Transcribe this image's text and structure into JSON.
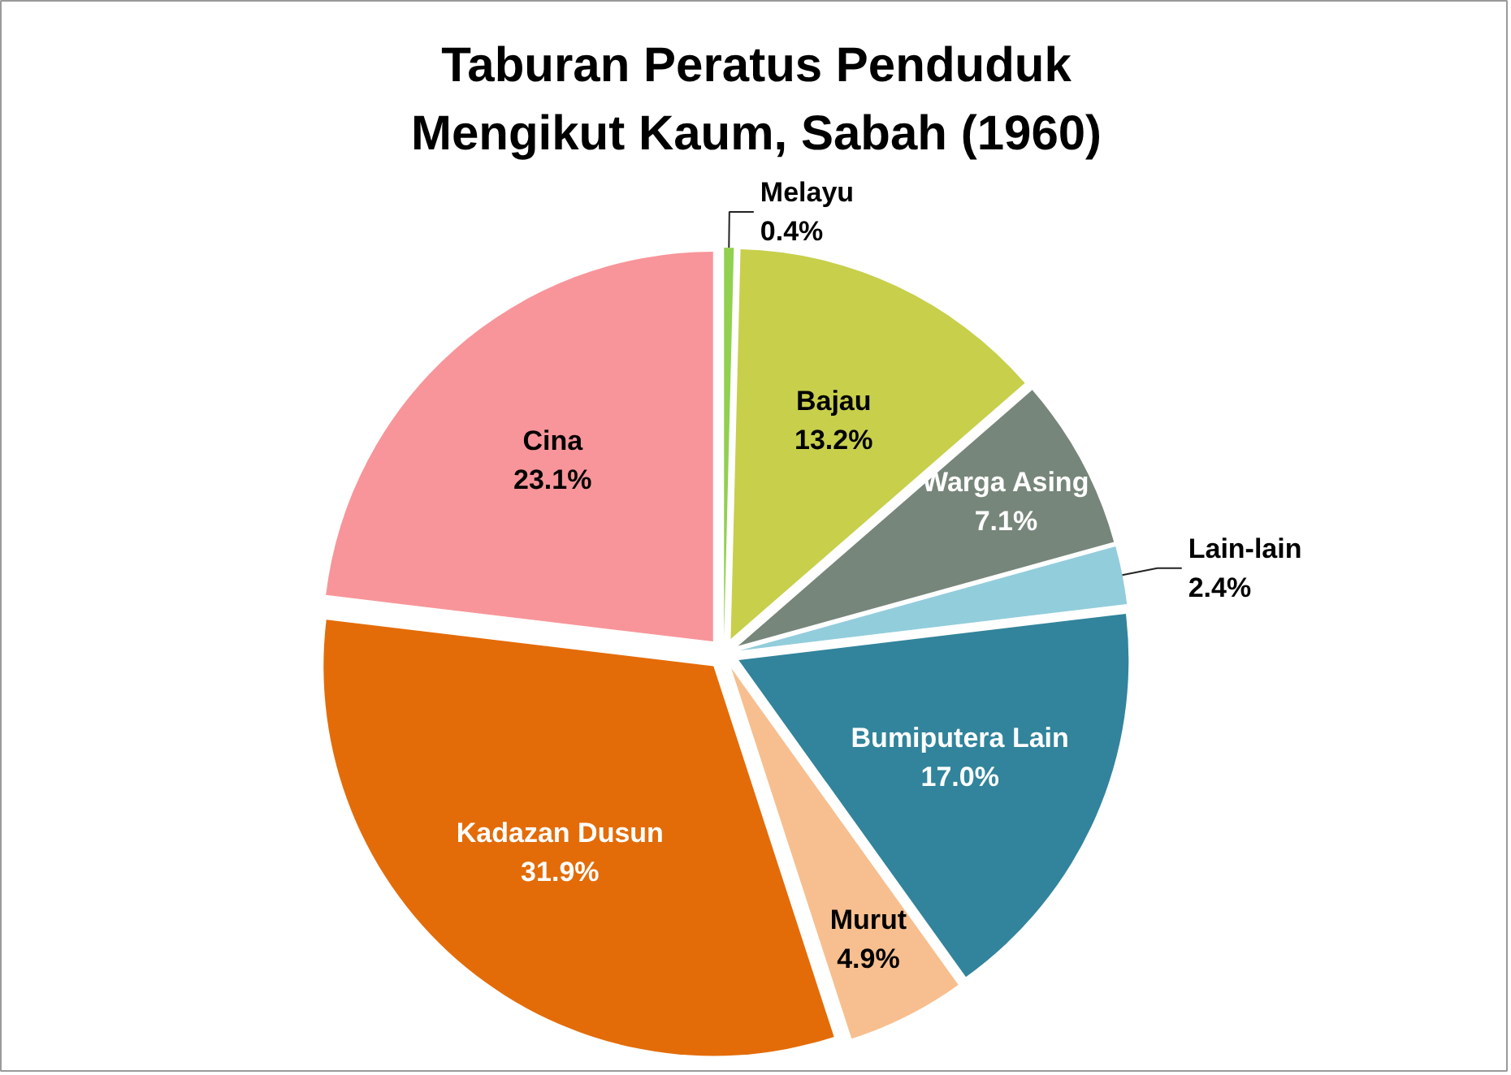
{
  "chart_data": {
    "type": "pie",
    "title": "Taburan Peratus Penduduk Mengikut Kaum, Sabah (1960)",
    "categories": [
      "Melayu",
      "Bajau",
      "Warga Asing",
      "Lain-lain",
      "Bumiputera Lain",
      "Murut",
      "Kadazan Dusun",
      "Cina"
    ],
    "values": [
      0.4,
      13.2,
      7.1,
      2.4,
      17.0,
      4.9,
      31.9,
      23.1
    ],
    "colors": [
      "#92d050",
      "#c8cf4b",
      "#77867a",
      "#92cddc",
      "#31849b",
      "#f7bf8f",
      "#e36c09",
      "#f8959a"
    ],
    "value_labels": [
      "0.4%",
      "13.2%",
      "7.1%",
      "2.4%",
      "17.0%",
      "4.9%",
      "31.9%",
      "23.1%"
    ]
  }
}
